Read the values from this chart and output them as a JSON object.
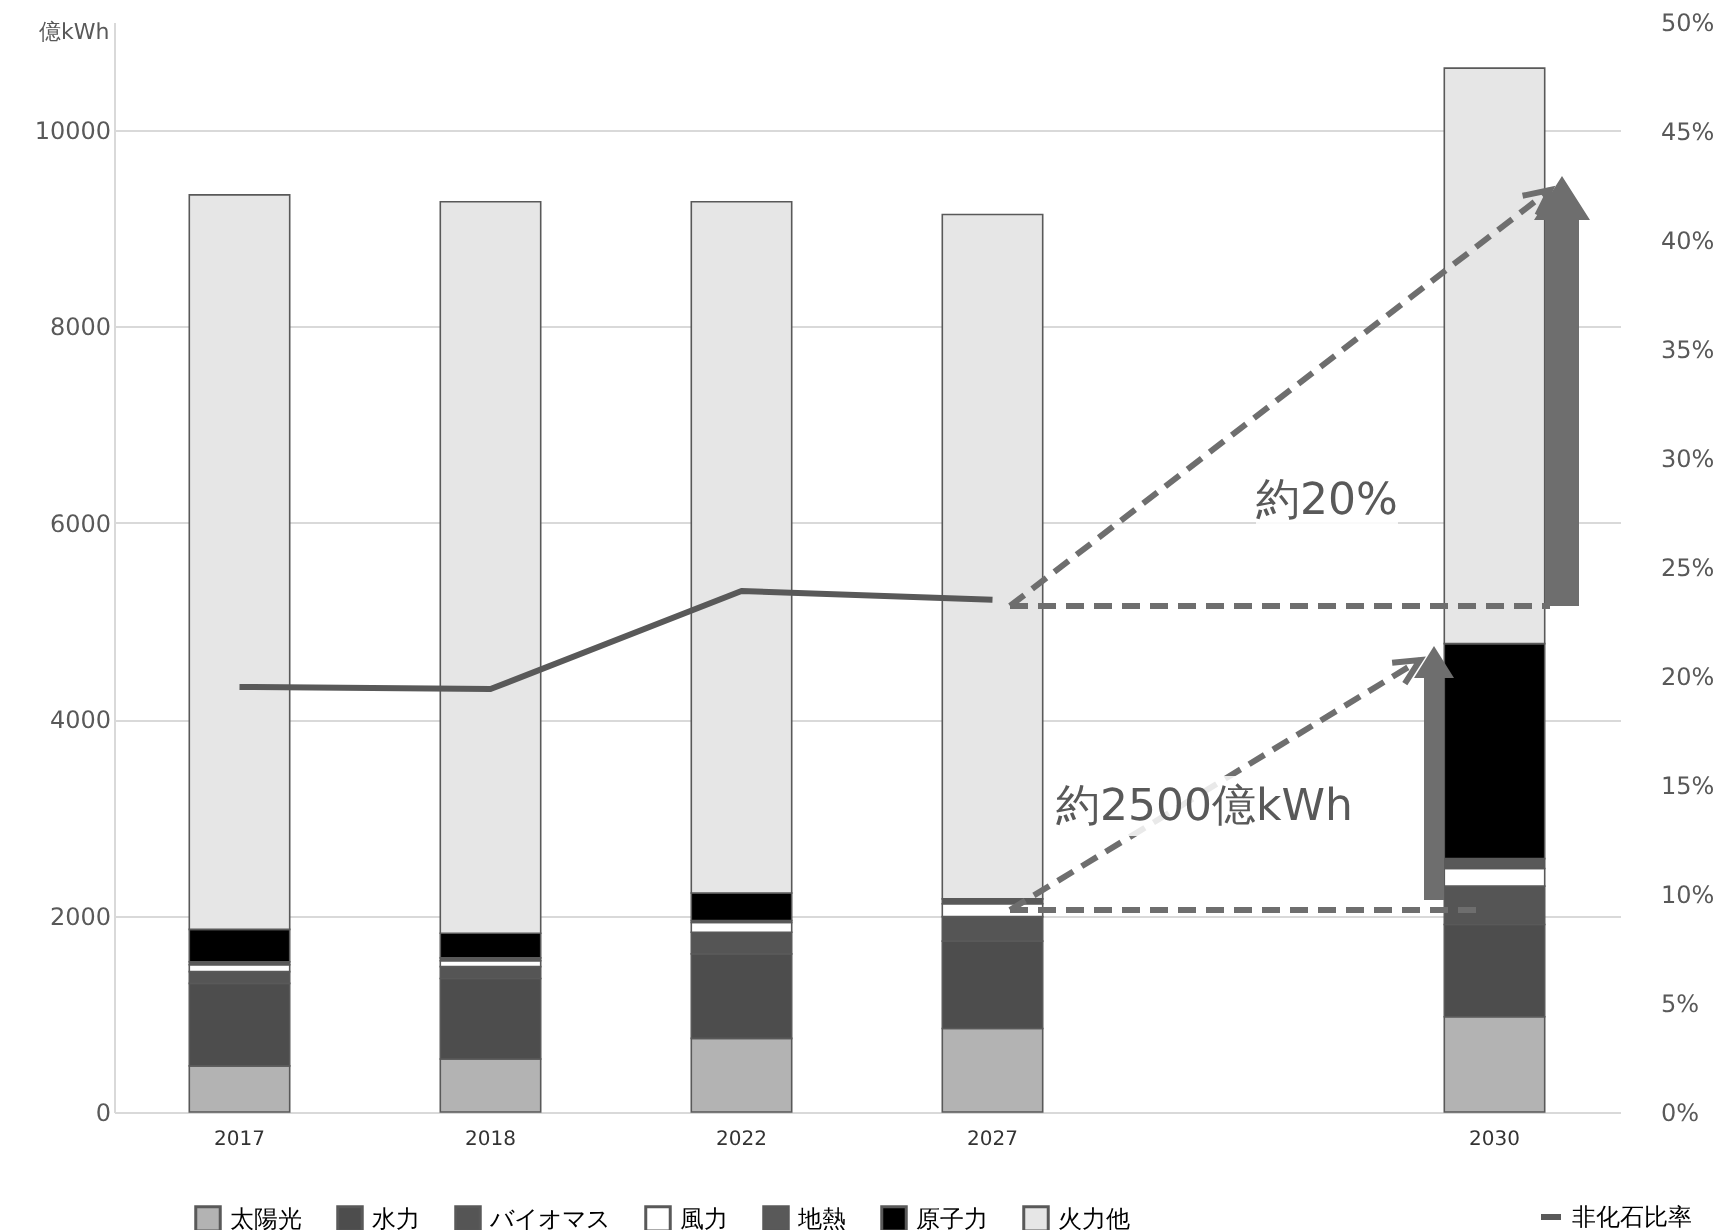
{
  "chart_data": {
    "type": "bar",
    "stacked": true,
    "categories": [
      "2017",
      "2018",
      "2022",
      "2027",
      null,
      "2030"
    ],
    "ylabel": "億kWh",
    "series": [
      {
        "name": "太陽光",
        "color": "#b3b3b3",
        "values": [
          470,
          540,
          750,
          850,
          null,
          970
        ]
      },
      {
        "name": "水力",
        "color": "#4d4d4d",
        "values": [
          840,
          820,
          860,
          890,
          null,
          940
        ]
      },
      {
        "name": "バイオマス",
        "color": "#555555",
        "values": [
          120,
          120,
          220,
          250,
          null,
          390
        ]
      },
      {
        "name": "風力",
        "color": "#ffffff",
        "values": [
          70,
          60,
          100,
          130,
          null,
          180
        ]
      },
      {
        "name": "地熱",
        "color": "#595959",
        "values": [
          30,
          30,
          20,
          50,
          null,
          100
        ]
      },
      {
        "name": "原子力",
        "color": "#000000",
        "values": [
          330,
          250,
          280,
          0,
          null,
          2190
        ]
      },
      {
        "name": "火力他",
        "color": "#e6e6e6",
        "values": [
          7480,
          7450,
          7040,
          6970,
          null,
          5860
        ]
      },
      {
        "name": "非化石比率",
        "type": "line",
        "axis": "y2",
        "color": "#595959",
        "values": [
          19.5,
          19.4,
          23.9,
          23.5,
          null,
          null
        ]
      }
    ],
    "ylim": [
      0,
      11100
    ],
    "yticks": [
      0,
      2000,
      4000,
      6000,
      8000,
      10000
    ],
    "y2lim": [
      0,
      50
    ],
    "y2ticks": [
      {
        "value": 0,
        "label": "0%"
      },
      {
        "value": 5,
        "label": "5%"
      },
      {
        "value": 10,
        "label": "10%"
      },
      {
        "value": 15,
        "label": "15%"
      },
      {
        "value": 20,
        "label": "20%"
      },
      {
        "value": 25,
        "label": "25%"
      },
      {
        "value": 30,
        "label": "30%"
      },
      {
        "value": 35,
        "label": "35%"
      },
      {
        "value": 40,
        "label": "40%"
      },
      {
        "value": 45,
        "label": "45%"
      },
      {
        "value": 50,
        "label": "50%"
      }
    ],
    "grid": "y",
    "legend": "bottom",
    "annotations": [
      "約20%",
      "約2500億kWh"
    ]
  }
}
